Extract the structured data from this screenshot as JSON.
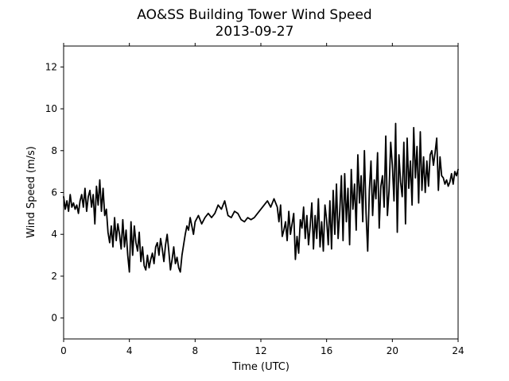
{
  "chart_data": {
    "type": "line",
    "title": "AO&SS Building Tower Wind Speed",
    "subtitle": "2013-09-27",
    "xlabel": "Time (UTC)",
    "ylabel": "Wind Speed (m/s)",
    "xlim": [
      0,
      24
    ],
    "ylim": [
      -1,
      13
    ],
    "xticks": [
      0,
      4,
      8,
      12,
      16,
      20,
      24
    ],
    "yticks": [
      0,
      2,
      4,
      6,
      8,
      10,
      12
    ],
    "grid": false,
    "line_color": "#000000",
    "series": [
      {
        "name": "",
        "x": [
          0.0,
          0.1,
          0.2,
          0.3,
          0.4,
          0.5,
          0.6,
          0.7,
          0.8,
          0.9,
          1.0,
          1.1,
          1.2,
          1.3,
          1.4,
          1.5,
          1.6,
          1.7,
          1.8,
          1.9,
          2.0,
          2.1,
          2.2,
          2.3,
          2.4,
          2.5,
          2.6,
          2.7,
          2.8,
          2.9,
          3.0,
          3.1,
          3.2,
          3.3,
          3.4,
          3.5,
          3.6,
          3.7,
          3.8,
          3.9,
          4.0,
          4.1,
          4.2,
          4.3,
          4.4,
          4.5,
          4.6,
          4.7,
          4.8,
          4.9,
          5.0,
          5.1,
          5.2,
          5.3,
          5.4,
          5.5,
          5.6,
          5.7,
          5.8,
          5.9,
          6.0,
          6.1,
          6.2,
          6.3,
          6.4,
          6.5,
          6.6,
          6.7,
          6.8,
          6.9,
          7.0,
          7.1,
          7.2,
          7.3,
          7.4,
          7.5,
          7.6,
          7.7,
          7.8,
          7.9,
          8.0,
          8.2,
          8.4,
          8.6,
          8.8,
          9.0,
          9.2,
          9.4,
          9.6,
          9.8,
          10.0,
          10.2,
          10.4,
          10.6,
          10.8,
          11.0,
          11.2,
          11.4,
          11.6,
          11.8,
          12.0,
          12.2,
          12.4,
          12.6,
          12.8,
          13.0,
          13.1,
          13.2,
          13.3,
          13.4,
          13.5,
          13.6,
          13.7,
          13.8,
          13.9,
          14.0,
          14.1,
          14.2,
          14.3,
          14.4,
          14.5,
          14.6,
          14.7,
          14.8,
          14.9,
          15.0,
          15.1,
          15.2,
          15.3,
          15.4,
          15.5,
          15.6,
          15.7,
          15.8,
          15.9,
          16.0,
          16.1,
          16.2,
          16.3,
          16.4,
          16.5,
          16.6,
          16.7,
          16.8,
          16.9,
          17.0,
          17.1,
          17.2,
          17.3,
          17.4,
          17.5,
          17.6,
          17.7,
          17.8,
          17.9,
          18.0,
          18.1,
          18.2,
          18.3,
          18.4,
          18.5,
          18.6,
          18.7,
          18.8,
          18.9,
          19.0,
          19.1,
          19.2,
          19.3,
          19.4,
          19.5,
          19.6,
          19.7,
          19.8,
          19.9,
          20.0,
          20.1,
          20.2,
          20.3,
          20.4,
          20.5,
          20.6,
          20.7,
          20.8,
          20.9,
          21.0,
          21.1,
          21.2,
          21.3,
          21.4,
          21.5,
          21.6,
          21.7,
          21.8,
          21.9,
          22.0,
          22.1,
          22.2,
          22.3,
          22.4,
          22.5,
          22.6,
          22.7,
          22.8,
          22.9,
          23.0,
          23.1,
          23.2,
          23.3,
          23.4,
          23.5,
          23.6,
          23.7,
          23.8,
          23.9,
          24.0
        ],
        "y": [
          5.8,
          5.2,
          5.6,
          5.1,
          5.9,
          5.3,
          5.5,
          5.2,
          5.4,
          5.0,
          5.6,
          5.9,
          5.3,
          6.2,
          5.1,
          5.8,
          6.1,
          5.3,
          5.9,
          4.5,
          6.3,
          5.4,
          6.6,
          5.1,
          6.2,
          4.9,
          5.2,
          4.1,
          3.6,
          4.4,
          3.4,
          4.8,
          3.7,
          4.5,
          4.0,
          3.3,
          4.7,
          3.4,
          4.2,
          3.0,
          2.2,
          4.6,
          3.0,
          4.4,
          3.6,
          3.2,
          4.1,
          2.7,
          3.4,
          2.5,
          2.3,
          3.0,
          2.4,
          2.8,
          3.1,
          2.6,
          3.4,
          3.6,
          3.0,
          3.8,
          3.3,
          2.7,
          3.5,
          4.0,
          3.2,
          2.3,
          2.8,
          3.4,
          2.6,
          2.9,
          2.4,
          2.2,
          3.0,
          3.5,
          4.0,
          4.4,
          4.2,
          4.8,
          4.4,
          4.0,
          4.6,
          4.9,
          4.5,
          4.8,
          5.0,
          4.8,
          5.0,
          5.4,
          5.2,
          5.6,
          4.9,
          4.8,
          5.1,
          5.0,
          4.7,
          4.6,
          4.8,
          4.7,
          4.8,
          5.0,
          5.2,
          5.4,
          5.6,
          5.3,
          5.7,
          5.3,
          4.6,
          5.4,
          3.9,
          4.2,
          4.6,
          3.7,
          5.1,
          4.0,
          4.5,
          5.0,
          2.8,
          3.9,
          3.1,
          4.7,
          4.3,
          5.3,
          3.8,
          4.9,
          3.5,
          4.4,
          5.5,
          3.3,
          4.9,
          3.8,
          5.7,
          3.4,
          4.6,
          3.2,
          5.4,
          4.7,
          3.5,
          5.6,
          3.3,
          6.1,
          4.0,
          6.4,
          3.8,
          5.1,
          6.8,
          3.7,
          6.9,
          4.6,
          6.2,
          3.5,
          7.1,
          5.2,
          6.4,
          4.2,
          7.8,
          5.5,
          6.8,
          4.6,
          8.0,
          5.0,
          3.2,
          6.1,
          7.5,
          4.9,
          6.6,
          5.7,
          7.9,
          4.3,
          6.3,
          6.8,
          5.3,
          8.7,
          4.9,
          6.1,
          8.4,
          7.3,
          5.6,
          9.3,
          4.1,
          7.8,
          6.5,
          5.8,
          8.4,
          4.5,
          8.6,
          6.2,
          7.5,
          5.4,
          9.1,
          6.7,
          8.2,
          5.5,
          8.9,
          6.1,
          7.7,
          6.0,
          7.5,
          6.3,
          7.8,
          8.0,
          7.3,
          7.9,
          8.6,
          6.1,
          7.7,
          6.8,
          6.7,
          6.4,
          6.6,
          6.3,
          6.5,
          6.9,
          6.4,
          7.0,
          6.8,
          7.1
        ]
      }
    ]
  }
}
